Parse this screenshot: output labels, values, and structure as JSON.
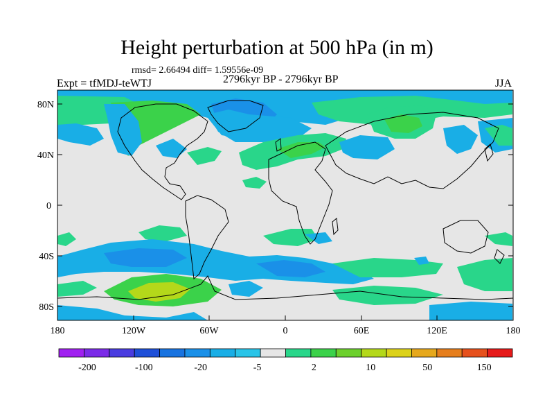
{
  "figure": {
    "title": "Height perturbation at 500 hPa (in m)",
    "stats": "rmsd= 2.66494 diff= 1.59556e-09",
    "experiment": "Expt = tfMDJ-teWTJ",
    "period": "2796kyr BP - 2796kyr BP",
    "season": "JJA"
  },
  "axes": {
    "lat_labels": [
      "80N",
      "40N",
      "0",
      "40S",
      "80S"
    ],
    "lon_labels": [
      "180",
      "120W",
      "60W",
      "0",
      "60E",
      "120E",
      "180"
    ]
  },
  "colorbar": {
    "labels": [
      "-200",
      "-100",
      "-20",
      "-5",
      "2",
      "10",
      "50",
      "150"
    ],
    "colors": [
      "#a020f0",
      "#7b2be8",
      "#4a3ce0",
      "#1e4fd8",
      "#1873e0",
      "#1a90e8",
      "#19aee6",
      "#29c4e8",
      "#e6e6e6",
      "#29d68a",
      "#3bd24a",
      "#6cd02c",
      "#b4d81a",
      "#dcd21a",
      "#e6a81c",
      "#e67e1c",
      "#e6501c",
      "#e61a1a"
    ]
  },
  "map_colors": {
    "background": "#e6e6e6",
    "light_blue": "#19aee6",
    "mid_blue": "#1a90e8",
    "light_green": "#29d68a",
    "green": "#3bd24a",
    "yellow_green": "#b4d81a"
  }
}
